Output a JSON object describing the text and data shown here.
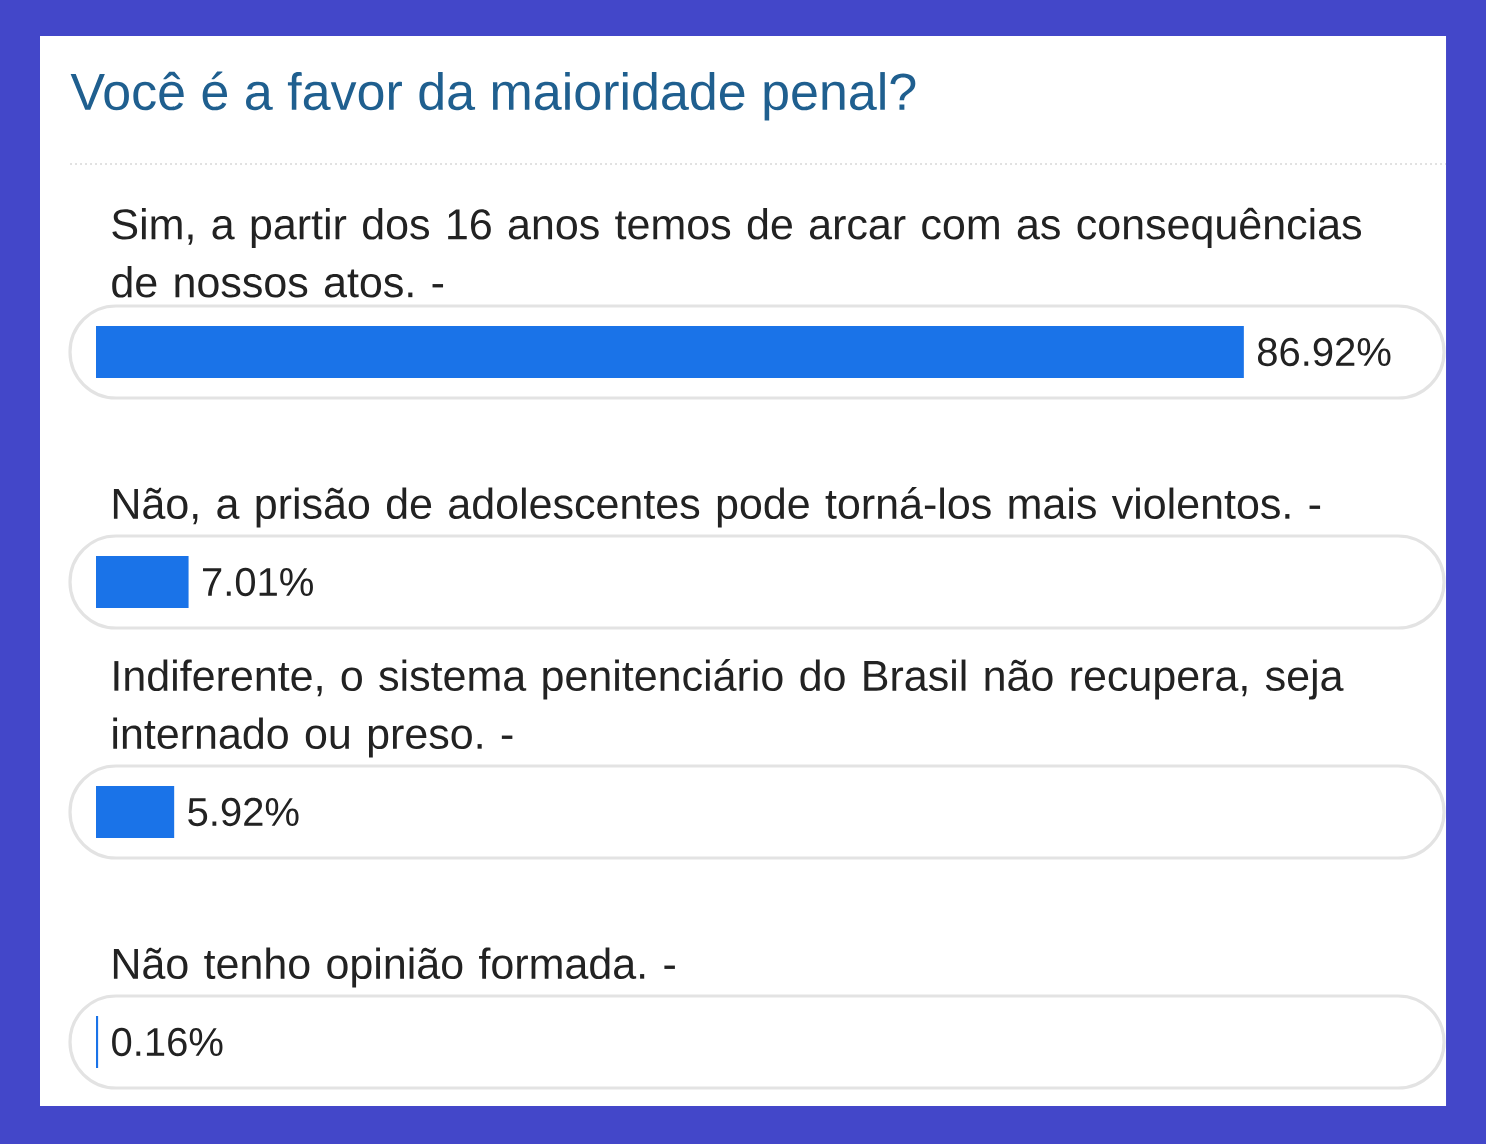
{
  "chart_data": {
    "type": "bar",
    "orientation": "horizontal",
    "title": "Você é a favor da maioridade penal?",
    "categories": [
      "Sim, a partir dos 16 anos temos de arcar com as consequências de nossos atos. -",
      "Não, a prisão de adolescentes pode torná-los mais violentos. -",
      "Indiferente, o sistema penitenciário do Brasil não recupera, seja internado ou preso. -",
      "Não tenho opinião formada. -"
    ],
    "values": [
      86.92,
      7.01,
      5.92,
      0.16
    ],
    "value_labels": [
      "86.92%",
      "7.01%",
      "5.92%",
      "0.16%"
    ],
    "color": "#1a73e8",
    "tick_labels": "y"
  }
}
